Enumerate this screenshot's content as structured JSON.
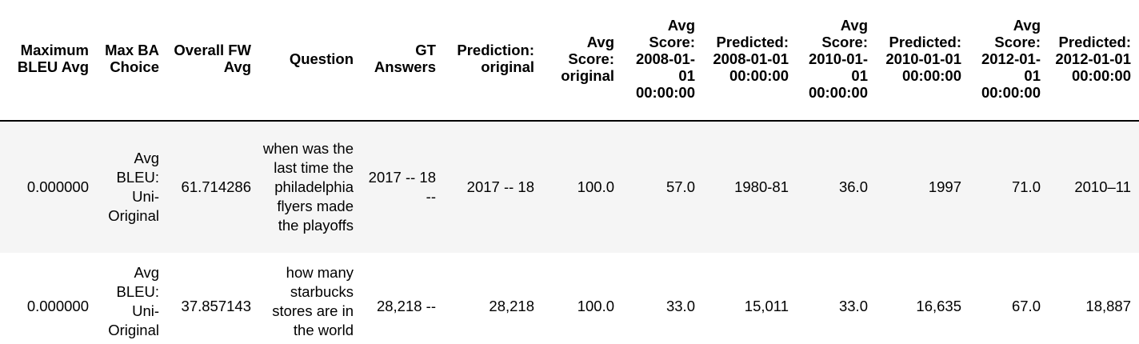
{
  "table": {
    "columns": [
      "Maximum BLEU Avg",
      "Max BA Choice",
      "Overall FW Avg",
      "Question",
      "GT Answers",
      "Prediction: original",
      "Avg Score: original",
      "Avg Score: 2008-01-01 00:00:00",
      "Predicted: 2008-01-01 00:00:00",
      "Avg Score: 2010-01-01 00:00:00",
      "Predicted: 2010-01-01 00:00:00",
      "Avg Score: 2012-01-01 00:00:00",
      "Predicted: 2012-01-01 00:00:00"
    ],
    "rows": [
      {
        "max_bleu_avg": "0.000000",
        "max_ba_choice": "Avg BLEU: Uni-Original",
        "overall_fw_avg": "61.714286",
        "question": "when was the last time the philadelphia flyers made the playoffs",
        "gt_answers": "2017 -- 18 --",
        "prediction_original": "2017 -- 18",
        "avg_score_original": "100.0",
        "avg_score_2008": "57.0",
        "predicted_2008": "1980-81",
        "avg_score_2010": "36.0",
        "predicted_2010": "1997",
        "avg_score_2012": "71.0",
        "predicted_2012": "2010–11"
      },
      {
        "max_bleu_avg": "0.000000",
        "max_ba_choice": "Avg BLEU: Uni-Original",
        "overall_fw_avg": "37.857143",
        "question": "how many starbucks stores are in the world",
        "gt_answers": "28,218 --",
        "prediction_original": "28,218",
        "avg_score_original": "100.0",
        "avg_score_2008": "33.0",
        "predicted_2008": "15,011",
        "avg_score_2010": "33.0",
        "predicted_2010": "16,635",
        "avg_score_2012": "67.0",
        "predicted_2012": "18,887"
      }
    ]
  }
}
